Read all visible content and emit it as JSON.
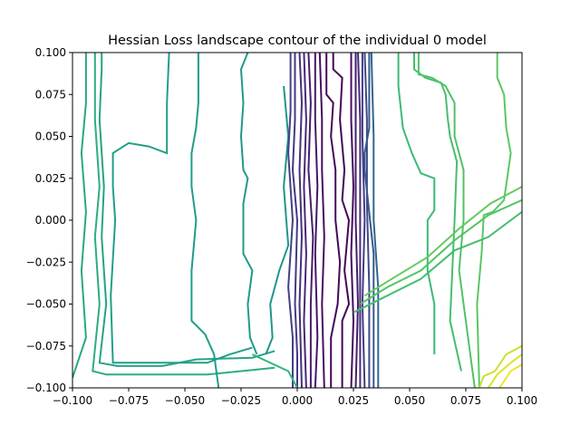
{
  "chart_data": {
    "type": "contour",
    "title": "Hessian Loss landscape contour of the individual 0 model",
    "xlabel": "",
    "ylabel": "",
    "xlim": [
      -0.1,
      0.1
    ],
    "ylim": [
      -0.1,
      0.1
    ],
    "xticks": [
      -0.1,
      -0.075,
      -0.05,
      -0.025,
      0.0,
      0.025,
      0.05,
      0.075,
      0.1
    ],
    "xtick_labels": [
      "−0.100",
      "−0.075",
      "−0.050",
      "−0.025",
      "0.000",
      "0.025",
      "0.050",
      "0.075",
      "0.100"
    ],
    "yticks": [
      -0.1,
      -0.075,
      -0.05,
      -0.025,
      0.0,
      0.025,
      0.05,
      0.075,
      0.1
    ],
    "ytick_labels": [
      "−0.100",
      "−0.075",
      "−0.050",
      "−0.025",
      "0.000",
      "0.025",
      "0.050",
      "0.075",
      "0.100"
    ],
    "grid": false,
    "colormap": "viridis",
    "colormap_stops": [
      "#440154",
      "#482878",
      "#3e4989",
      "#31688e",
      "#26828e",
      "#1f9e89",
      "#35b779",
      "#6ece58",
      "#b5de2b",
      "#fde725"
    ],
    "contours": [
      {
        "level": 0.6,
        "points": [
          [
            -0.094,
            0.1
          ],
          [
            -0.094,
            0.07
          ],
          [
            -0.096,
            0.04
          ],
          [
            -0.094,
            0.005
          ],
          [
            -0.096,
            -0.03
          ],
          [
            -0.094,
            -0.07
          ],
          [
            -0.1,
            -0.094
          ]
        ]
      },
      {
        "level": 0.62,
        "points": [
          [
            -0.09,
            0.1
          ],
          [
            -0.09,
            0.06
          ],
          [
            -0.088,
            0.02
          ],
          [
            -0.09,
            -0.01
          ],
          [
            -0.088,
            -0.05
          ],
          [
            -0.091,
            -0.09
          ],
          [
            -0.085,
            -0.092
          ],
          [
            -0.04,
            -0.092
          ],
          [
            -0.01,
            -0.088
          ]
        ]
      },
      {
        "level": 0.58,
        "points": [
          [
            -0.087,
            0.1
          ],
          [
            -0.087,
            0.09
          ],
          [
            -0.088,
            0.06
          ],
          [
            -0.086,
            0.02
          ],
          [
            -0.087,
            -0.01
          ],
          [
            -0.085,
            -0.05
          ],
          [
            -0.088,
            -0.085
          ],
          [
            -0.08,
            -0.087
          ],
          [
            -0.06,
            -0.087
          ],
          [
            -0.045,
            -0.083
          ],
          [
            -0.02,
            -0.082
          ],
          [
            -0.01,
            -0.078
          ]
        ]
      },
      {
        "level": 0.56,
        "points": [
          [
            -0.057,
            0.1
          ],
          [
            -0.058,
            0.07
          ],
          [
            -0.058,
            0.04
          ],
          [
            -0.066,
            0.044
          ],
          [
            -0.075,
            0.046
          ],
          [
            -0.082,
            0.04
          ],
          [
            -0.082,
            0.02
          ],
          [
            -0.081,
            0.0
          ],
          [
            -0.083,
            -0.045
          ],
          [
            -0.082,
            -0.085
          ],
          [
            -0.04,
            -0.085
          ],
          [
            -0.03,
            -0.08
          ],
          [
            -0.02,
            -0.076
          ]
        ]
      },
      {
        "level": 0.55,
        "points": [
          [
            -0.044,
            0.1
          ],
          [
            -0.044,
            0.07
          ],
          [
            -0.045,
            0.055
          ],
          [
            -0.047,
            0.04
          ],
          [
            -0.047,
            0.02
          ],
          [
            -0.045,
            0.0
          ],
          [
            -0.047,
            -0.03
          ],
          [
            -0.047,
            -0.06
          ],
          [
            -0.041,
            -0.068
          ],
          [
            -0.037,
            -0.08
          ],
          [
            -0.035,
            -0.1
          ]
        ]
      },
      {
        "level": 0.54,
        "points": [
          [
            -0.022,
            0.1
          ],
          [
            -0.025,
            0.09
          ],
          [
            -0.024,
            0.07
          ],
          [
            -0.025,
            0.05
          ],
          [
            -0.024,
            0.03
          ],
          [
            -0.022,
            0.025
          ],
          [
            -0.024,
            0.01
          ],
          [
            -0.024,
            -0.02
          ],
          [
            -0.02,
            -0.03
          ],
          [
            -0.022,
            -0.05
          ],
          [
            -0.021,
            -0.07
          ],
          [
            -0.018,
            -0.08
          ]
        ]
      },
      {
        "level": 0.52,
        "points": [
          [
            -0.006,
            0.08
          ],
          [
            -0.004,
            0.05
          ],
          [
            -0.006,
            0.02
          ],
          [
            -0.004,
            -0.015
          ],
          [
            -0.008,
            -0.03
          ],
          [
            -0.012,
            -0.05
          ],
          [
            -0.011,
            -0.07
          ],
          [
            -0.014,
            -0.08
          ]
        ]
      },
      {
        "level": 0.2,
        "points": [
          [
            -0.003,
            0.1
          ],
          [
            -0.003,
            0.065
          ],
          [
            -0.004,
            0.04
          ],
          [
            -0.002,
            0.0
          ],
          [
            -0.004,
            -0.04
          ],
          [
            -0.002,
            -0.07
          ],
          [
            -0.002,
            -0.1
          ]
        ]
      },
      {
        "level": 0.17,
        "points": [
          [
            -0.001,
            0.1
          ],
          [
            -0.001,
            0.06
          ],
          [
            -0.002,
            0.03
          ],
          [
            0.0,
            0.0
          ],
          [
            -0.001,
            -0.05
          ],
          [
            0.0,
            -0.08
          ],
          [
            0.0,
            -0.1
          ]
        ]
      },
      {
        "level": 0.14,
        "points": [
          [
            0.001,
            0.1
          ],
          [
            0.002,
            0.07
          ],
          [
            0.001,
            0.03
          ],
          [
            0.002,
            -0.01
          ],
          [
            0.001,
            -0.05
          ],
          [
            0.002,
            -0.1
          ]
        ]
      },
      {
        "level": 0.11,
        "points": [
          [
            0.003,
            0.1
          ],
          [
            0.004,
            0.06
          ],
          [
            0.003,
            0.02
          ],
          [
            0.004,
            -0.02
          ],
          [
            0.003,
            -0.06
          ],
          [
            0.004,
            -0.1
          ]
        ]
      },
      {
        "level": 0.08,
        "points": [
          [
            0.005,
            0.1
          ],
          [
            0.006,
            0.07
          ],
          [
            0.005,
            0.03
          ],
          [
            0.007,
            -0.01
          ],
          [
            0.006,
            -0.05
          ],
          [
            0.006,
            -0.1
          ]
        ]
      },
      {
        "level": 0.06,
        "points": [
          [
            0.008,
            0.1
          ],
          [
            0.008,
            0.06
          ],
          [
            0.009,
            0.02
          ],
          [
            0.008,
            -0.02
          ],
          [
            0.009,
            -0.07
          ],
          [
            0.008,
            -0.1
          ]
        ]
      },
      {
        "level": 0.04,
        "points": [
          [
            0.01,
            0.1
          ],
          [
            0.011,
            0.06
          ],
          [
            0.011,
            0.03
          ],
          [
            0.012,
            -0.01
          ],
          [
            0.011,
            -0.05
          ],
          [
            0.012,
            -0.1
          ]
        ]
      },
      {
        "level": 0.02,
        "points": [
          [
            0.013,
            0.1
          ],
          [
            0.013,
            0.075
          ],
          [
            0.016,
            0.07
          ],
          [
            0.015,
            0.05
          ],
          [
            0.017,
            0.03
          ],
          [
            0.017,
            0.0
          ],
          [
            0.019,
            -0.025
          ],
          [
            0.018,
            -0.05
          ],
          [
            0.015,
            -0.07
          ],
          [
            0.015,
            -0.1
          ]
        ]
      },
      {
        "level": 0.01,
        "points": [
          [
            0.016,
            0.1
          ],
          [
            0.016,
            0.09
          ],
          [
            0.02,
            0.085
          ],
          [
            0.019,
            0.06
          ],
          [
            0.021,
            0.03
          ],
          [
            0.02,
            0.012
          ],
          [
            0.023,
            0.0
          ],
          [
            0.021,
            -0.03
          ],
          [
            0.023,
            -0.05
          ],
          [
            0.02,
            -0.06
          ],
          [
            0.02,
            -0.1
          ]
        ]
      },
      {
        "level": 0.03,
        "points": [
          [
            0.024,
            0.1
          ],
          [
            0.024,
            0.06
          ],
          [
            0.025,
            0.02
          ],
          [
            0.024,
            -0.02
          ],
          [
            0.025,
            -0.06
          ],
          [
            0.024,
            -0.1
          ]
        ]
      },
      {
        "level": 0.08,
        "points": [
          [
            0.026,
            0.1
          ],
          [
            0.026,
            0.06
          ],
          [
            0.026,
            0.0
          ],
          [
            0.027,
            -0.05
          ],
          [
            0.026,
            -0.1
          ]
        ]
      },
      {
        "level": 0.13,
        "points": [
          [
            0.027,
            0.1
          ],
          [
            0.028,
            0.06
          ],
          [
            0.028,
            0.02
          ],
          [
            0.028,
            -0.03
          ],
          [
            0.028,
            -0.1
          ]
        ]
      },
      {
        "level": 0.18,
        "points": [
          [
            0.029,
            0.1
          ],
          [
            0.029,
            0.05
          ],
          [
            0.03,
            0.0
          ],
          [
            0.029,
            -0.05
          ],
          [
            0.03,
            -0.1
          ]
        ]
      },
      {
        "level": 0.23,
        "points": [
          [
            0.03,
            0.1
          ],
          [
            0.031,
            0.06
          ],
          [
            0.031,
            0.01
          ],
          [
            0.032,
            -0.04
          ],
          [
            0.032,
            -0.1
          ]
        ]
      },
      {
        "level": 0.28,
        "points": [
          [
            0.032,
            0.1
          ],
          [
            0.032,
            0.055
          ],
          [
            0.03,
            0.04
          ],
          [
            0.03,
            0.03
          ],
          [
            0.034,
            -0.02
          ],
          [
            0.034,
            -0.1
          ]
        ]
      },
      {
        "level": 0.33,
        "points": [
          [
            0.033,
            0.1
          ],
          [
            0.034,
            0.05
          ],
          [
            0.034,
            0.0
          ],
          [
            0.036,
            -0.04
          ],
          [
            0.036,
            -0.1
          ]
        ]
      },
      {
        "level": 0.68,
        "points": [
          [
            0.045,
            0.1
          ],
          [
            0.045,
            0.08
          ],
          [
            0.047,
            0.055
          ],
          [
            0.051,
            0.04
          ],
          [
            0.055,
            0.028
          ],
          [
            0.061,
            0.025
          ],
          [
            0.061,
            0.006
          ],
          [
            0.058,
            0.0
          ],
          [
            0.058,
            -0.03
          ],
          [
            0.061,
            -0.05
          ],
          [
            0.061,
            -0.08
          ]
        ]
      },
      {
        "level": 0.7,
        "points": [
          [
            0.052,
            0.1
          ],
          [
            0.052,
            0.09
          ],
          [
            0.057,
            0.085
          ],
          [
            0.064,
            0.082
          ],
          [
            0.066,
            0.075
          ],
          [
            0.067,
            0.06
          ],
          [
            0.068,
            0.05
          ],
          [
            0.071,
            0.035
          ],
          [
            0.07,
            0.0
          ],
          [
            0.069,
            -0.03
          ],
          [
            0.068,
            -0.06
          ],
          [
            0.073,
            -0.09
          ]
        ]
      },
      {
        "level": 0.72,
        "points": [
          [
            0.054,
            0.1
          ],
          [
            0.054,
            0.087
          ],
          [
            0.06,
            0.085
          ],
          [
            0.066,
            0.08
          ],
          [
            0.07,
            0.07
          ],
          [
            0.07,
            0.05
          ],
          [
            0.074,
            0.03
          ],
          [
            0.074,
            0.0
          ],
          [
            0.072,
            -0.03
          ],
          [
            0.075,
            -0.06
          ],
          [
            0.078,
            -0.09
          ],
          [
            0.079,
            -0.1
          ]
        ]
      },
      {
        "level": 0.74,
        "points": [
          [
            0.089,
            0.1
          ],
          [
            0.089,
            0.085
          ],
          [
            0.092,
            0.075
          ],
          [
            0.093,
            0.055
          ],
          [
            0.095,
            0.04
          ],
          [
            0.092,
            0.012
          ],
          [
            0.087,
            0.005
          ],
          [
            0.083,
            0.003
          ],
          [
            0.082,
            -0.02
          ],
          [
            0.08,
            -0.05
          ],
          [
            0.081,
            -0.1
          ]
        ]
      },
      {
        "level": 0.66,
        "points": [
          [
            0.0,
            -0.1
          ],
          [
            -0.004,
            -0.09
          ],
          [
            -0.012,
            -0.085
          ],
          [
            -0.02,
            -0.08
          ]
        ]
      },
      {
        "level": 0.7,
        "points": [
          [
            0.025,
            -0.055
          ],
          [
            0.04,
            -0.045
          ],
          [
            0.055,
            -0.035
          ],
          [
            0.07,
            -0.018
          ],
          [
            0.085,
            -0.01
          ],
          [
            0.1,
            0.005
          ]
        ]
      },
      {
        "level": 0.73,
        "points": [
          [
            0.028,
            -0.05
          ],
          [
            0.04,
            -0.04
          ],
          [
            0.055,
            -0.03
          ],
          [
            0.07,
            -0.012
          ],
          [
            0.085,
            0.003
          ],
          [
            0.1,
            0.012
          ]
        ]
      },
      {
        "level": 0.76,
        "points": [
          [
            0.03,
            -0.045
          ],
          [
            0.042,
            -0.035
          ],
          [
            0.058,
            -0.022
          ],
          [
            0.072,
            -0.005
          ],
          [
            0.086,
            0.01
          ],
          [
            0.1,
            0.02
          ]
        ]
      },
      {
        "level": 0.92,
        "points": [
          [
            0.081,
            -0.1
          ],
          [
            0.083,
            -0.093
          ],
          [
            0.088,
            -0.09
          ],
          [
            0.093,
            -0.08
          ],
          [
            0.1,
            -0.075
          ]
        ]
      },
      {
        "level": 0.95,
        "points": [
          [
            0.085,
            -0.1
          ],
          [
            0.089,
            -0.092
          ],
          [
            0.095,
            -0.085
          ],
          [
            0.1,
            -0.08
          ]
        ]
      },
      {
        "level": 0.98,
        "points": [
          [
            0.09,
            -0.1
          ],
          [
            0.095,
            -0.09
          ],
          [
            0.1,
            -0.086
          ]
        ]
      }
    ]
  }
}
